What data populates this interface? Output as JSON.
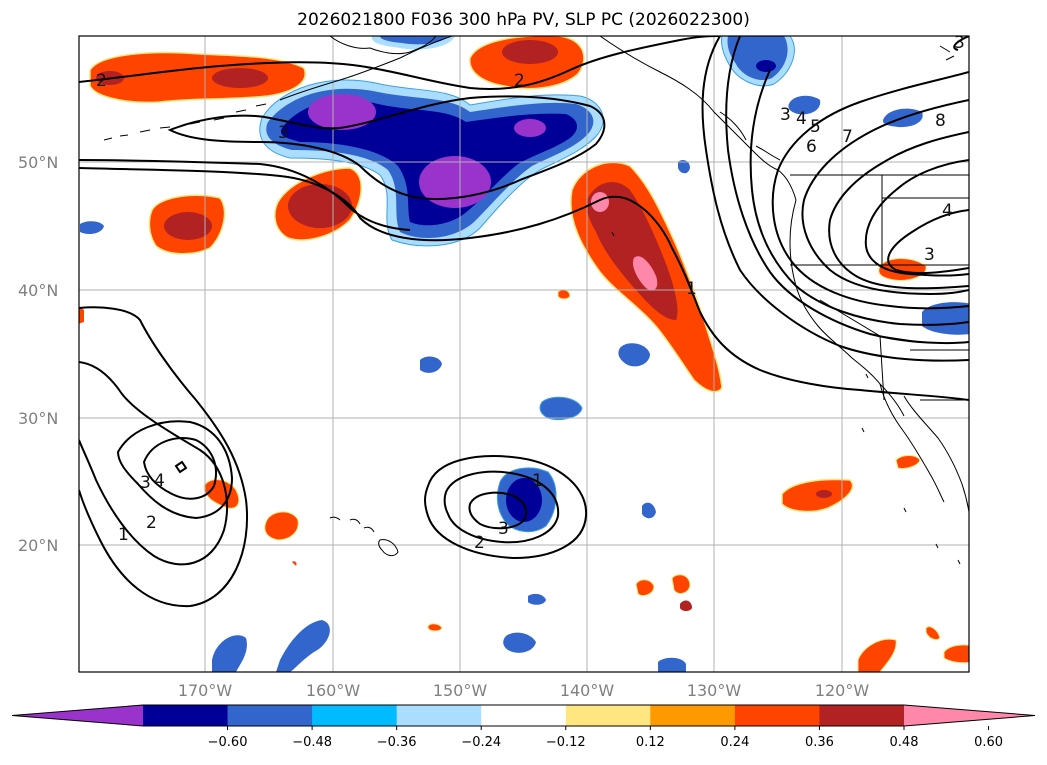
{
  "title": "2026021800 F036 300 hPa PV, SLP PC (2026022300)",
  "map": {
    "lat_labels": [
      "50°N",
      "40°N",
      "30°N",
      "20°N"
    ],
    "lon_labels": [
      "170°W",
      "160°W",
      "150°W",
      "140°W",
      "130°W",
      "120°W"
    ],
    "gridlines": true,
    "land_outline": "coastlines and borders"
  },
  "colorbar": {
    "ticks": [
      "−0.60",
      "−0.48",
      "−0.36",
      "−0.24",
      "−0.12",
      "0.12",
      "0.24",
      "0.36",
      "0.48",
      "0.60"
    ],
    "colors": [
      "#9933cc",
      "#000099",
      "#3366cc",
      "#00bbff",
      "#aaddff",
      "#ffffff",
      "#ffe680",
      "#ff9900",
      "#ff4400",
      "#b22222",
      "#ff88aa"
    ],
    "extend": "both"
  },
  "contour_labels": [
    "2",
    "2",
    "3",
    "3",
    "4",
    "5",
    "6",
    "7",
    "8",
    "4",
    "3",
    "1",
    "2",
    "3",
    "1",
    "1",
    "2",
    "3",
    "4",
    "3"
  ]
}
